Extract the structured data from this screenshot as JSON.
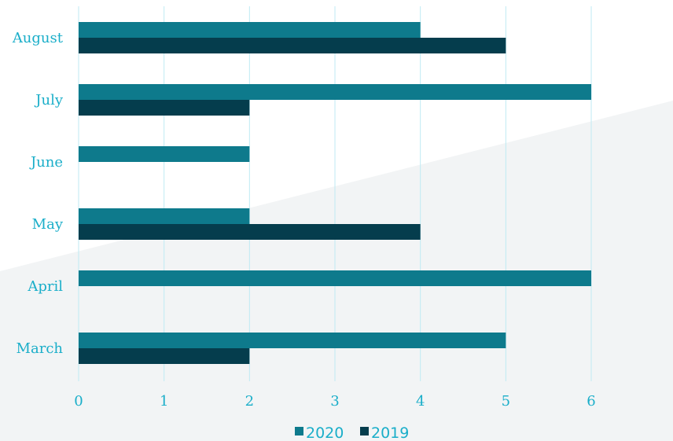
{
  "chart_data": {
    "type": "bar",
    "orientation": "horizontal",
    "categories": [
      "August",
      "July",
      "June",
      "May",
      "April",
      "March"
    ],
    "series": [
      {
        "name": "2020",
        "color": "#0e7a8c",
        "values": [
          4,
          6,
          2,
          2,
          6,
          5
        ]
      },
      {
        "name": "2019",
        "color": "#053d4d",
        "values": [
          5,
          2,
          0,
          4,
          0,
          2
        ]
      }
    ],
    "xlim": [
      0,
      6
    ],
    "xticks": [
      "0",
      "1",
      "2",
      "3",
      "4",
      "5",
      "6"
    ],
    "grid": true,
    "legend_position": "bottom-center",
    "colors": {
      "label": "#1aaec9",
      "grid": "#bfeaf3",
      "background_band": "#f2f4f5"
    }
  }
}
